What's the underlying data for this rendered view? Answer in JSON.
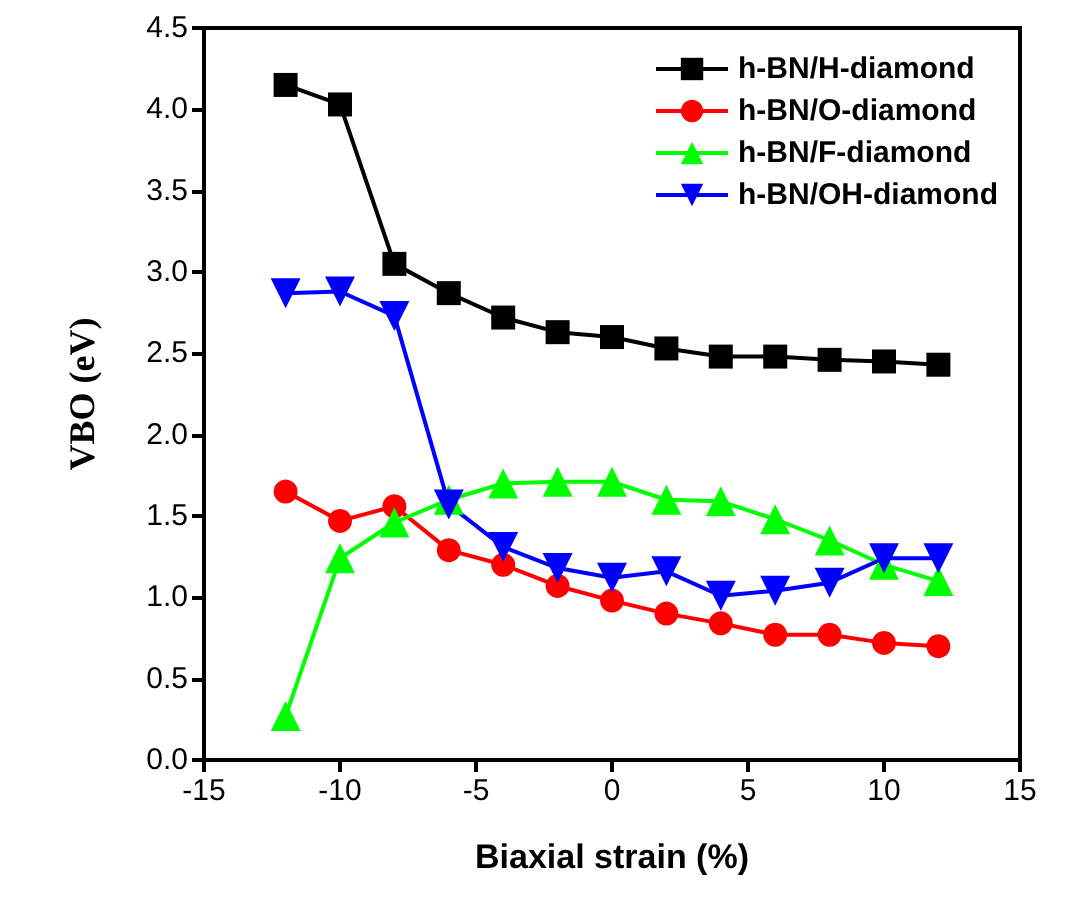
{
  "chart_data": {
    "type": "line",
    "xlabel": "Biaxial strain (%)",
    "ylabel": "VBO (eV)",
    "x": [
      -12,
      -10,
      -8,
      -6,
      -4,
      -2,
      0,
      2,
      4,
      6,
      8,
      10,
      12
    ],
    "xlim": [
      -15,
      15
    ],
    "xticks": [
      -15,
      -10,
      -5,
      0,
      5,
      10,
      15
    ],
    "ylim": [
      0,
      4.5
    ],
    "yticks": [
      {
        "value": 0,
        "label": "0.0"
      },
      {
        "value": 0.5,
        "label": "0.5"
      },
      {
        "value": 1,
        "label": "1.0"
      },
      {
        "value": 1.5,
        "label": "1.5"
      },
      {
        "value": 2,
        "label": "2.0"
      },
      {
        "value": 2.5,
        "label": "2.5"
      },
      {
        "value": 3,
        "label": "3.0"
      },
      {
        "value": 3.5,
        "label": "3.5"
      },
      {
        "value": 4,
        "label": "4.0"
      },
      {
        "value": 4.5,
        "label": "4.5"
      }
    ],
    "grid": false,
    "legend": "top right",
    "line_style": "solid",
    "series": [
      {
        "name": "h-BN/H-diamond",
        "color": "#000000",
        "marker": "square",
        "values": [
          4.15,
          4.03,
          3.05,
          2.87,
          2.72,
          2.63,
          2.6,
          2.53,
          2.48,
          2.48,
          2.46,
          2.45,
          2.43
        ]
      },
      {
        "name": "h-BN/O-diamond",
        "color": "#ff0000",
        "marker": "circle",
        "values": [
          1.65,
          1.47,
          1.56,
          1.29,
          1.2,
          1.07,
          0.98,
          0.9,
          0.84,
          0.77,
          0.77,
          0.72,
          0.7
        ]
      },
      {
        "name": "h-BN/F-diamond",
        "color": "#00ff00",
        "marker": "triangle",
        "values": [
          0.27,
          1.24,
          1.46,
          1.6,
          1.7,
          1.71,
          1.71,
          1.6,
          1.59,
          1.48,
          1.35,
          1.2,
          1.1
        ]
      },
      {
        "name": "h-BN/OH-diamond",
        "color": "#0000ff",
        "marker": "triangle-down",
        "values": [
          2.87,
          2.88,
          2.73,
          1.57,
          1.31,
          1.18,
          1.12,
          1.16,
          1.01,
          1.04,
          1.09,
          1.24,
          1.24
        ]
      }
    ]
  }
}
